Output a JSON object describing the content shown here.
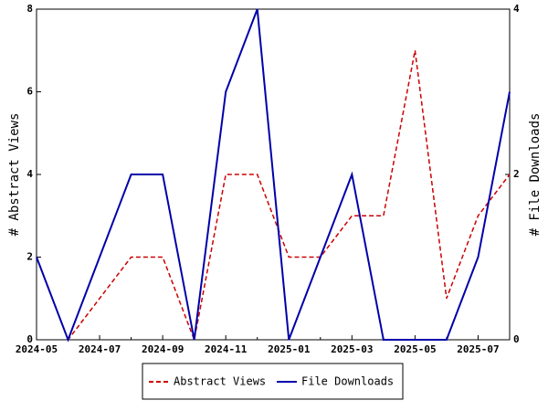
{
  "chart_data": {
    "type": "line",
    "categories": [
      "2024-05",
      null,
      "2024-07",
      null,
      "2024-09",
      null,
      "2024-11",
      null,
      "2025-01",
      null,
      "2025-03",
      null,
      "2025-05",
      null,
      "2025-07",
      null
    ],
    "series": [
      {
        "name": "Abstract Views",
        "color": "#cc0000",
        "dashed": true,
        "values": [
          2,
          0,
          1,
          2,
          2,
          0,
          4,
          4,
          2,
          2,
          3,
          3,
          7,
          1,
          3,
          4
        ]
      },
      {
        "name": "File Downloads",
        "color": "#0000aa",
        "axis": "y2",
        "values": [
          1,
          0,
          1,
          2,
          2,
          0,
          3,
          4,
          0,
          1,
          2,
          0,
          0,
          0,
          1,
          3
        ]
      }
    ],
    "ylabel": "# Abstract Views",
    "y2label": "# File Downloads",
    "ylim": [
      0,
      8
    ],
    "yticks": [
      0,
      2,
      4,
      6,
      8
    ],
    "y2lim": [
      0,
      4
    ],
    "y2ticks": [
      0,
      2,
      4
    ],
    "legend": "bottom"
  }
}
